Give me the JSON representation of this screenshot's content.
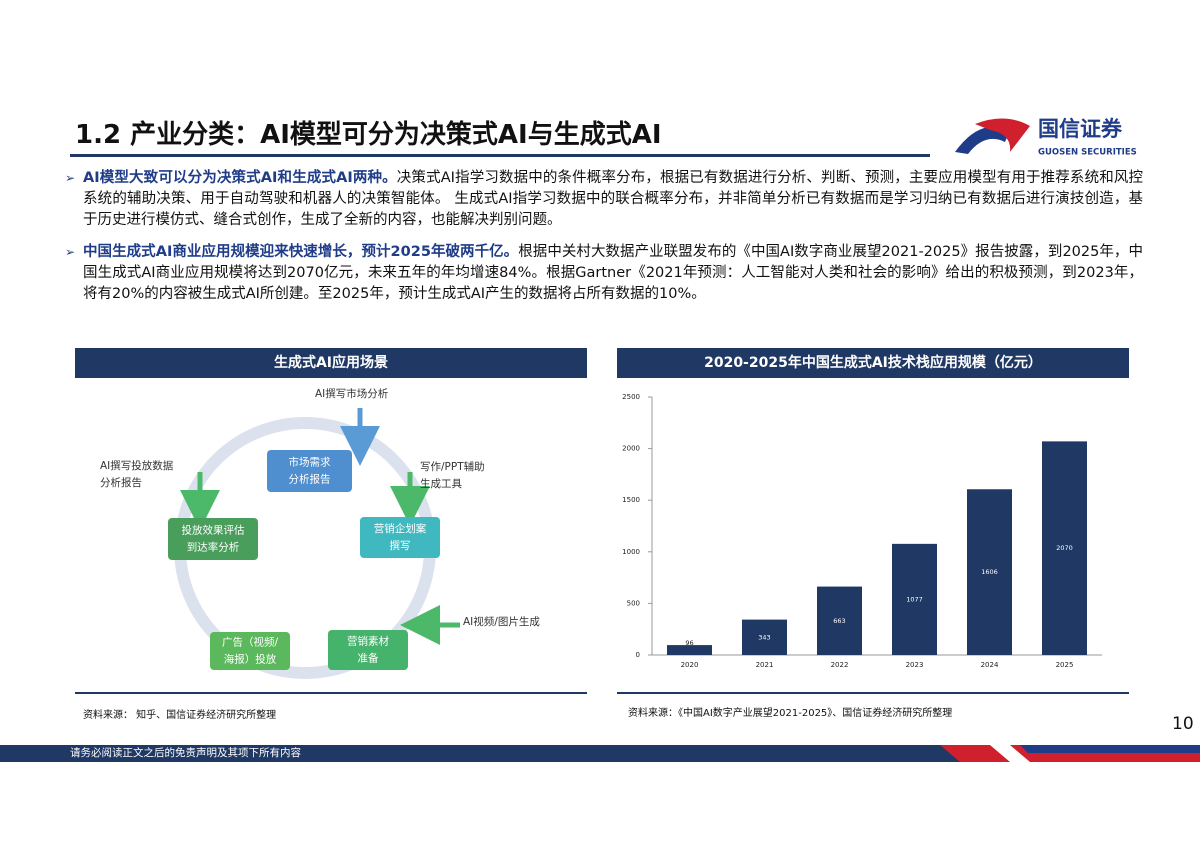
{
  "header": {
    "title": "1.2 产业分类：AI模型可分为决策式AI与生成式AI",
    "logo_name": "国信证券",
    "logo_en": "GUOSEN SECURITIES"
  },
  "bullets": [
    {
      "lead": "AI模型大致可以分为决策式AI和生成式AI两种。",
      "text": "决策式AI指学习数据中的条件概率分布，根据已有数据进行分析、判断、预测，主要应用模型有用于推荐系统和风控系统的辅助决策、用于自动驾驶和机器人的决策智能体。 生成式AI指学习数据中的联合概率分布，并非简单分析已有数据而是学习归纳已有数据后进行演技创造，基于历史进行模仿式、缝合式创作，生成了全新的内容，也能解决判别问题。"
    },
    {
      "lead": "中国生成式AI商业应用规模迎来快速增长，预计2025年破两千亿。",
      "text": "根据中关村大数据产业联盟发布的《中国AI数字商业展望2021-2025》报告披露，到2025年，中国生成式AI商业应用规模将达到2070亿元，未来五年的年均增速84%。根据Gartner《2021年预测：人工智能对人类和社会的影响》给出的积极预测，到2023年，将有20%的内容被生成式AI所创建。至2025年，预计生成式AI产生的数据将占所有数据的10%。"
    }
  ],
  "diagram": {
    "title": "生成式AI应用场景",
    "nodes": [
      {
        "lines": [
          "市场需求",
          "分析报告"
        ]
      },
      {
        "lines": [
          "营销企划案",
          "撰写"
        ]
      },
      {
        "lines": [
          "营销素材",
          "准备"
        ]
      },
      {
        "lines": [
          "广告（视频/",
          "海报）投放"
        ]
      },
      {
        "lines": [
          "投放效果评估",
          "到达率分析"
        ]
      }
    ],
    "inputs": [
      {
        "lines": [
          "AI撰写市场分析"
        ]
      },
      {
        "lines": [
          "写作/PPT辅助",
          "生成工具"
        ]
      },
      {
        "lines": [
          "AI视频/图片生成"
        ]
      },
      {
        "lines": [
          "AI撰写投放数据",
          "分析报告"
        ]
      }
    ],
    "source": "资料来源： 知乎、国信证券经济研究所整理"
  },
  "chart_data": {
    "type": "bar",
    "title": "2020-2025年中国生成式AI技术栈应用规模（亿元）",
    "categories": [
      "2020",
      "2021",
      "2022",
      "2023",
      "2024",
      "2025"
    ],
    "values": [
      96,
      343,
      663,
      1077,
      1606,
      2070
    ],
    "color": "#1f3864",
    "ylim": [
      0,
      2500
    ],
    "yticks": [
      0,
      500,
      1000,
      1500,
      2000,
      2500
    ],
    "grid": false
  },
  "chart_source": "资料来源：《中国AI数字产业展望2021-2025》、国信证券经济研究所整理",
  "page_number": "10",
  "footer": "请务必阅读正文之后的免责声明及其项下所有内容"
}
